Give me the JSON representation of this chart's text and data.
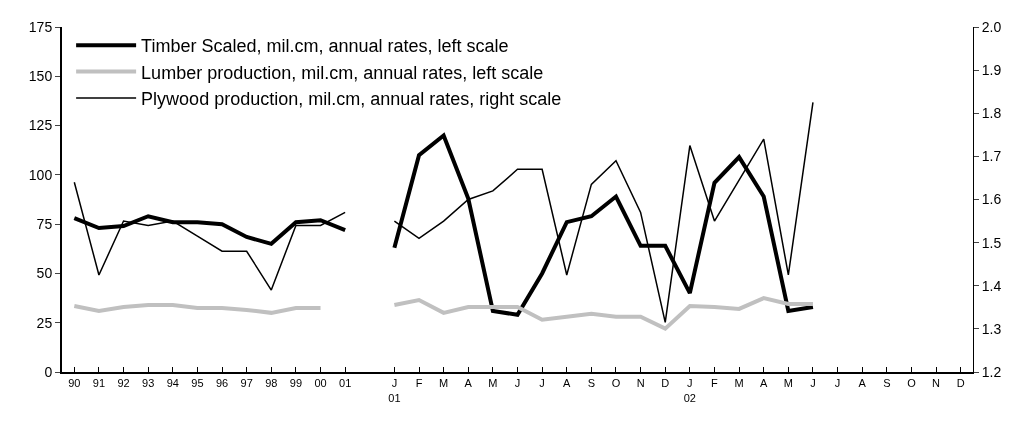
{
  "chart_data": {
    "type": "line",
    "categories": [
      "90",
      "91",
      "92",
      "93",
      "94",
      "95",
      "96",
      "97",
      "98",
      "99",
      "00",
      "01",
      null,
      "J\n01",
      "F",
      "M",
      "A",
      "M",
      "J",
      "J",
      "A",
      "S",
      "O",
      "N",
      "D",
      "J\n02",
      "F",
      "M",
      "A",
      "M",
      "J",
      "J",
      "A",
      "S",
      "O",
      "N",
      "D"
    ],
    "series": [
      {
        "name": "Timber Scaled, mil.cm, annual rates, left scale",
        "color": "#000000",
        "values": [
          78,
          73,
          74,
          79,
          76,
          76,
          75,
          68.5,
          65,
          76,
          77,
          72,
          null,
          63,
          110,
          120,
          88,
          31,
          29,
          50,
          76,
          79,
          89,
          64,
          64,
          40,
          96,
          109,
          89,
          31,
          33,
          null,
          null,
          null,
          null,
          null,
          null
        ]
      },
      {
        "name": "Lumber production, mil.cm, annual rates, left scale",
        "color": "#c0c0c0",
        "values": [
          33.5,
          31,
          33,
          34,
          34,
          32.5,
          32.5,
          31.5,
          30,
          32.5,
          32.5,
          null,
          null,
          34,
          36.5,
          30,
          33,
          33,
          33,
          26.5,
          28,
          29.5,
          28,
          28,
          22,
          33.5,
          33,
          32,
          37.5,
          34.5,
          34.5,
          null,
          null,
          null,
          null,
          null,
          null
        ]
      },
      {
        "name": "Plywood production, mil.cm, annual rates, right scale",
        "color": "#000000",
        "axis": "y2",
        "values": [
          1.64,
          1.425,
          1.55,
          1.54,
          1.55,
          1.515,
          1.48,
          1.48,
          1.39,
          1.54,
          1.54,
          1.57,
          null,
          1.55,
          1.51,
          1.55,
          1.6,
          1.62,
          1.67,
          1.67,
          1.425,
          1.635,
          1.69,
          1.57,
          1.315,
          1.725,
          1.55,
          1.645,
          1.74,
          1.425,
          1.825,
          null,
          null,
          null,
          null,
          null,
          null
        ]
      }
    ],
    "ylim": [
      0,
      175
    ],
    "yticks": [
      0,
      25,
      50,
      75,
      100,
      125,
      150,
      175
    ],
    "y2lim": [
      1.2,
      2.0
    ],
    "y2ticks": [
      {
        "value": 1.2,
        "label": "1.2"
      },
      {
        "value": 1.3,
        "label": "1.3"
      },
      {
        "value": 1.4,
        "label": "1.4"
      },
      {
        "value": 1.5,
        "label": "1.5"
      },
      {
        "value": 1.6,
        "label": "1.6"
      },
      {
        "value": 1.7,
        "label": "1.7"
      },
      {
        "value": 1.8,
        "label": "1.8"
      },
      {
        "value": 1.9,
        "label": "1.9"
      },
      {
        "value": 2.0,
        "label": "2.0"
      }
    ],
    "legend": "top left",
    "marker": "none",
    "line_style": "solid"
  }
}
